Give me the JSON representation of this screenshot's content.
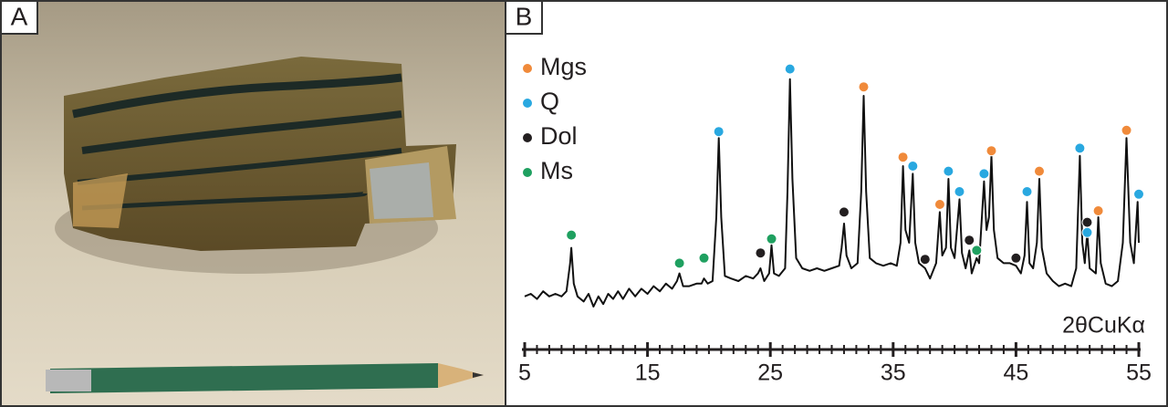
{
  "panels": [
    "A",
    "B"
  ],
  "chart_data": {
    "type": "line",
    "x_label": "2θCuKα",
    "xlim": [
      5,
      55
    ],
    "xticks": [
      5,
      15,
      25,
      35,
      45,
      55
    ],
    "x_minor_ticks": [
      6,
      7,
      8,
      9,
      10,
      11,
      12,
      13,
      14,
      16,
      17,
      18,
      19,
      20,
      21,
      22,
      23,
      24,
      26,
      27,
      28,
      29,
      30,
      31,
      32,
      33,
      34,
      36,
      37,
      38,
      39,
      40,
      41,
      42,
      43,
      44,
      46,
      47,
      48,
      49,
      50,
      51,
      52,
      53,
      54
    ],
    "ylim": [
      0,
      100
    ],
    "line": {
      "color": "#111111",
      "x": [
        5,
        5.5,
        6,
        6.5,
        7,
        7.5,
        8,
        8.4,
        8.7,
        8.8,
        9,
        9.3,
        9.8,
        10.2,
        10.6,
        11,
        11.4,
        11.8,
        12.2,
        12.6,
        13,
        13.5,
        14,
        14.5,
        15,
        15.5,
        16,
        16.5,
        17,
        17.4,
        17.6,
        17.9,
        18.4,
        19,
        19.4,
        19.6,
        19.9,
        20.3,
        20.6,
        20.8,
        21,
        21.3,
        21.8,
        22.4,
        23,
        23.6,
        24,
        24.2,
        24.5,
        24.9,
        25.1,
        25.3,
        25.7,
        26.2,
        26.4,
        26.6,
        26.8,
        27.1,
        27.6,
        28.2,
        28.8,
        29.4,
        30,
        30.6,
        30.8,
        31,
        31.2,
        31.6,
        32.1,
        32.4,
        32.6,
        32.8,
        33.1,
        33.6,
        34.2,
        34.8,
        35.3,
        35.6,
        35.8,
        36,
        36.3,
        36.6,
        36.8,
        37.1,
        37.6,
        38,
        38.5,
        38.8,
        39,
        39.3,
        39.5,
        39.7,
        40,
        40.4,
        40.6,
        40.9,
        41.2,
        41.4,
        41.8,
        42,
        42.4,
        42.6,
        42.8,
        43,
        43.2,
        43.5,
        44,
        44.5,
        45,
        45.4,
        45.7,
        45.9,
        46.1,
        46.4,
        46.7,
        46.9,
        47.1,
        47.5,
        48,
        48.5,
        49,
        49.5,
        49.9,
        50.2,
        50.4,
        50.6,
        50.8,
        51,
        51.5,
        51.7,
        51.9,
        52.3,
        52.8,
        53.3,
        53.7,
        54,
        54.3,
        54.6,
        54.9,
        55
      ],
      "y": [
        9,
        10,
        8,
        11,
        9,
        10,
        9,
        11,
        22,
        28,
        14,
        9,
        7,
        10,
        5,
        9,
        6,
        10,
        8,
        11,
        8,
        12,
        9,
        12,
        10,
        13,
        11,
        14,
        12,
        15,
        18,
        13,
        13,
        14,
        14,
        16,
        14,
        15,
        40,
        71,
        40,
        17,
        16,
        15,
        17,
        16,
        18,
        20,
        15,
        18,
        29,
        18,
        17,
        20,
        50,
        94,
        55,
        24,
        20,
        19,
        20,
        19,
        20,
        21,
        28,
        37.5,
        25,
        20,
        22,
        50,
        87.5,
        50,
        24,
        22,
        21,
        22,
        21,
        30,
        60,
        35,
        30,
        57,
        30,
        22,
        20,
        16,
        22,
        42,
        25,
        28,
        55,
        28,
        24,
        47,
        26,
        20,
        27,
        18,
        24,
        22,
        54,
        35,
        40,
        64,
        35,
        24,
        22,
        22,
        21,
        18,
        25,
        46,
        22,
        20,
        30,
        55,
        28,
        18,
        15,
        13,
        14,
        13,
        20,
        64,
        30,
        22,
        34,
        20,
        18,
        40,
        22,
        14,
        13,
        15,
        30,
        71,
        30,
        22,
        46,
        30
      ]
    },
    "series": [
      {
        "name": "Mgs",
        "color": "#f08a3a",
        "x": [
          32.6,
          35.8,
          38.8,
          43.0,
          46.9,
          51.7,
          54.0
        ],
        "values": [
          91,
          63.5,
          45,
          66,
          58,
          42.5,
          74
        ]
      },
      {
        "name": "Q",
        "color": "#29a8e0",
        "x": [
          20.8,
          26.6,
          36.6,
          39.5,
          40.4,
          42.4,
          45.9,
          50.2,
          50.8,
          55
        ],
        "values": [
          73.5,
          98,
          60,
          58,
          50,
          57,
          50,
          67,
          34,
          49
        ]
      },
      {
        "name": "Dol",
        "color": "#231f20",
        "x": [
          24.2,
          31.0,
          37.6,
          41.2,
          45.0,
          50.8
        ],
        "values": [
          26,
          42,
          23.5,
          31,
          24,
          38
        ]
      },
      {
        "name": "Ms",
        "color": "#1fa060",
        "x": [
          8.8,
          17.6,
          19.6,
          25.1,
          41.8
        ],
        "values": [
          33,
          22,
          24,
          31.5,
          27
        ]
      }
    ]
  }
}
